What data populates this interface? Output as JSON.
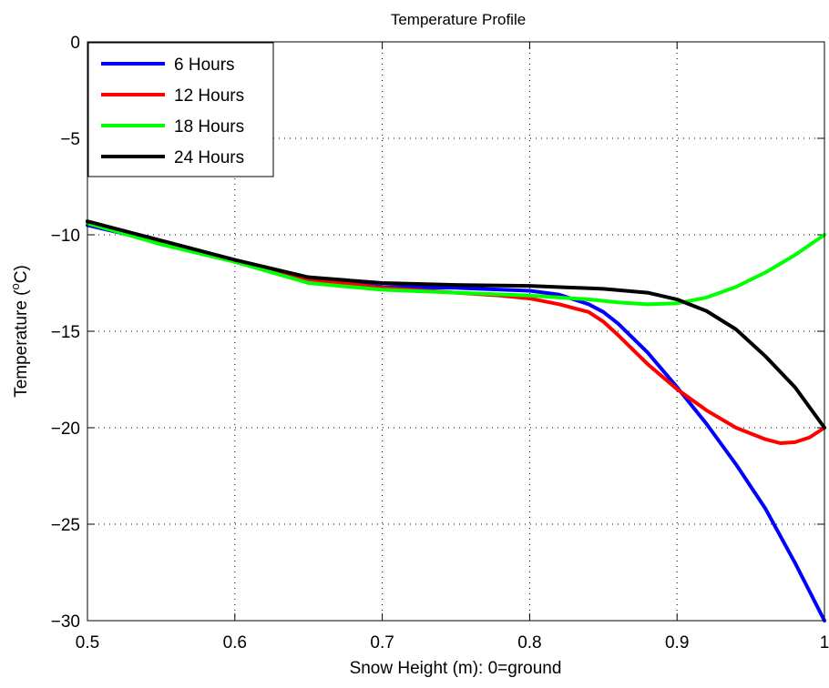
{
  "chart_data": {
    "type": "line",
    "title": "Temperature Profile",
    "xlabel": "Snow Height (m): 0=ground",
    "ylabel_main": "Temperature (",
    "ylabel_sup": "o",
    "ylabel_end": "C)",
    "xlim": [
      0.5,
      1.0
    ],
    "ylim": [
      -30,
      0
    ],
    "xticks": [
      0.5,
      0.6,
      0.7,
      0.8,
      0.9,
      1.0
    ],
    "xtick_labels": [
      "0.5",
      "0.6",
      "0.7",
      "0.8",
      "0.9",
      "1"
    ],
    "yticks": [
      0,
      -5,
      -10,
      -15,
      -20,
      -25,
      -30
    ],
    "ytick_labels": [
      "0",
      "−5",
      "−10",
      "−15",
      "−20",
      "−25",
      "−30"
    ],
    "grid": true,
    "legend_position": "top-left",
    "series": [
      {
        "name": "6 Hours",
        "color": "#0000ff",
        "x": [
          0.5,
          0.55,
          0.6,
          0.65,
          0.7,
          0.75,
          0.8,
          0.82,
          0.84,
          0.85,
          0.86,
          0.88,
          0.9,
          0.92,
          0.94,
          0.96,
          0.98,
          1.0
        ],
        "y": [
          -9.5,
          -10.4,
          -11.4,
          -12.3,
          -12.7,
          -12.75,
          -12.9,
          -13.1,
          -13.6,
          -14.0,
          -14.6,
          -16.1,
          -17.9,
          -19.8,
          -21.9,
          -24.2,
          -27.0,
          -30.0
        ]
      },
      {
        "name": "12 Hours",
        "color": "#ff0000",
        "x": [
          0.5,
          0.55,
          0.6,
          0.65,
          0.7,
          0.75,
          0.78,
          0.8,
          0.82,
          0.84,
          0.85,
          0.86,
          0.88,
          0.9,
          0.92,
          0.94,
          0.96,
          0.97,
          0.98,
          0.99,
          1.0
        ],
        "y": [
          -9.4,
          -10.4,
          -11.4,
          -12.3,
          -12.75,
          -13.0,
          -13.15,
          -13.3,
          -13.6,
          -14.0,
          -14.5,
          -15.2,
          -16.7,
          -18.0,
          -19.1,
          -20.0,
          -20.6,
          -20.8,
          -20.75,
          -20.5,
          -20.0
        ]
      },
      {
        "name": "18 Hours",
        "color": "#00ff00",
        "x": [
          0.5,
          0.55,
          0.6,
          0.65,
          0.7,
          0.75,
          0.8,
          0.84,
          0.86,
          0.88,
          0.9,
          0.92,
          0.94,
          0.96,
          0.98,
          1.0
        ],
        "y": [
          -9.4,
          -10.5,
          -11.4,
          -12.5,
          -12.85,
          -13.0,
          -13.15,
          -13.35,
          -13.5,
          -13.6,
          -13.55,
          -13.25,
          -12.7,
          -11.95,
          -11.05,
          -10.0
        ]
      },
      {
        "name": "24 Hours",
        "color": "#000000",
        "x": [
          0.5,
          0.55,
          0.6,
          0.65,
          0.7,
          0.75,
          0.8,
          0.85,
          0.88,
          0.9,
          0.92,
          0.94,
          0.96,
          0.98,
          1.0
        ],
        "y": [
          -9.3,
          -10.3,
          -11.3,
          -12.2,
          -12.5,
          -12.6,
          -12.65,
          -12.8,
          -13.0,
          -13.35,
          -13.95,
          -14.9,
          -16.3,
          -17.9,
          -20.0
        ]
      }
    ]
  }
}
